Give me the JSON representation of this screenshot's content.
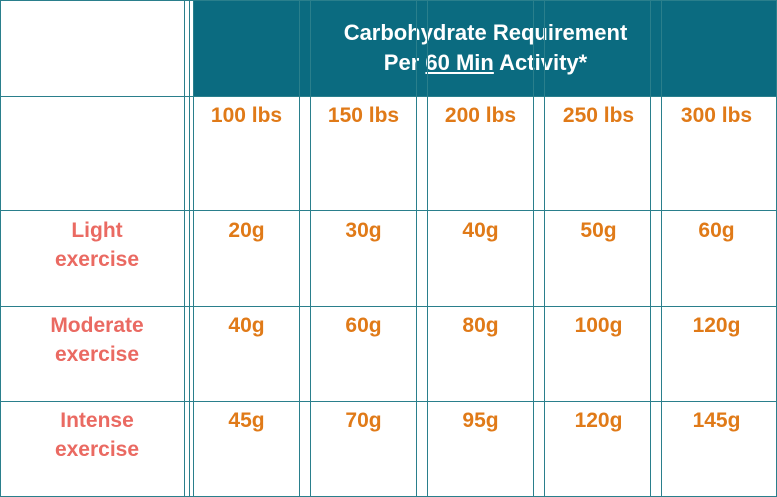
{
  "header": {
    "line1": "Carbohydrate Requirement",
    "line2_prefix": "Per ",
    "line2_underlined": "60 Min",
    "line2_suffix": " Activity*"
  },
  "columns": [
    "100 lbs",
    "150 lbs",
    "200 lbs",
    "250 lbs",
    "300 lbs"
  ],
  "rows": [
    {
      "label_line1": "Light",
      "label_line2": "exercise",
      "values": [
        "20g",
        "30g",
        "40g",
        "50g",
        "60g"
      ]
    },
    {
      "label_line1": "Moderate",
      "label_line2": "exercise",
      "values": [
        "40g",
        "60g",
        "80g",
        "100g",
        "120g"
      ]
    },
    {
      "label_line1": "Intense",
      "label_line2": "exercise",
      "values": [
        "45g",
        "70g",
        "95g",
        "120g",
        "145g"
      ]
    }
  ],
  "colors": {
    "header_bg": "#0b6b80",
    "grid_line": "#2a7f8c",
    "column_text": "#e07a18",
    "row_label_text": "#ea6a62"
  }
}
